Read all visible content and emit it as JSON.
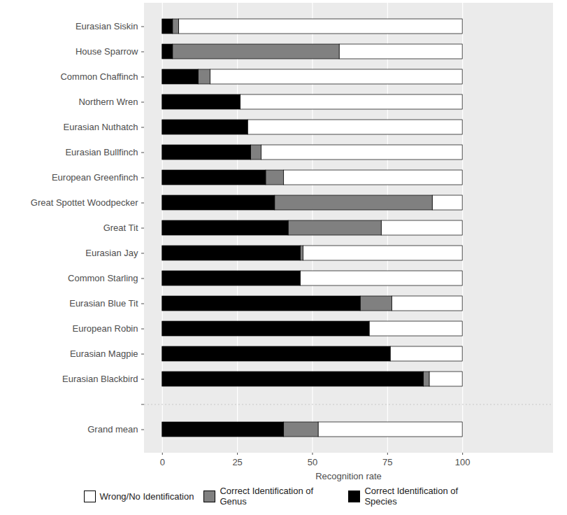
{
  "chart_data": {
    "type": "bar",
    "orientation": "horizontal",
    "stacked": true,
    "categories": [
      "Eurasian Siskin",
      "House Sparrow",
      "Common Chaffinch",
      "Northern Wren",
      "Eurasian Nuthatch",
      "Eurasian Bullfinch",
      "European Greenfinch",
      "Great Spottet Woodpecker",
      "Great Tit",
      "Eurasian Jay",
      "Common Starling",
      "Eurasian Blue Tit",
      "European Robin",
      "Eurasian Magpie",
      "Eurasian Blackbird",
      "Grand mean"
    ],
    "series": [
      {
        "name": "Wrong/No Identification",
        "color": "#ffffff",
        "values": [
          94.5,
          41,
          84,
          74,
          71.5,
          67,
          59.5,
          10,
          27,
          53,
          54,
          23.5,
          31,
          24,
          11,
          48
        ]
      },
      {
        "name": "Correct Identification of Genus",
        "color": "#808080",
        "values": [
          2,
          55.5,
          4,
          0,
          0,
          3.5,
          6,
          52.5,
          31,
          1,
          0,
          10.5,
          0,
          0,
          2,
          11.5
        ]
      },
      {
        "name": "Correct Identification of Species",
        "color": "#000000",
        "values": [
          3.5,
          3.5,
          12,
          26,
          28.5,
          29.5,
          34.5,
          37.5,
          42,
          46,
          46,
          66,
          69,
          76,
          87,
          40.5
        ]
      }
    ],
    "xlabel": "Recognition rate",
    "xlim": [
      -6,
      130
    ],
    "xticks": [
      0,
      25,
      50,
      75,
      100
    ],
    "grid": true,
    "legend": "bottom"
  }
}
